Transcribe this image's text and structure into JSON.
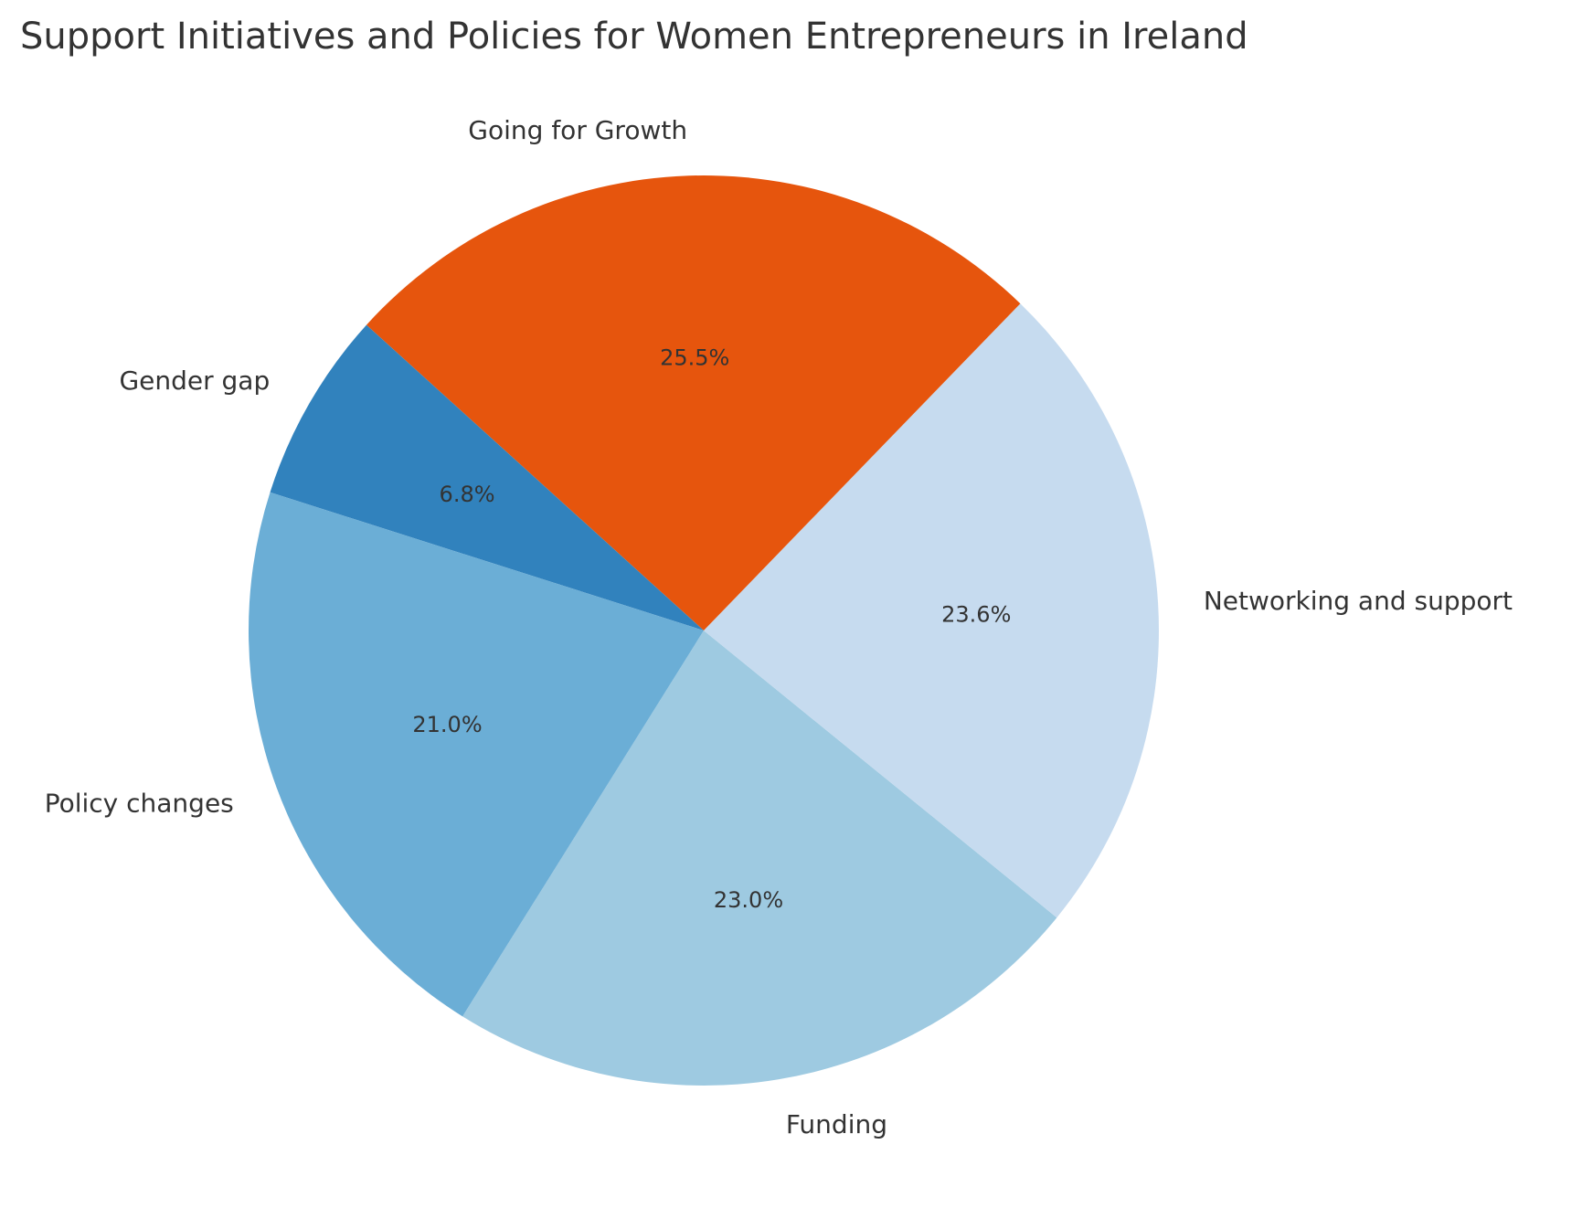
{
  "chart_data": {
    "type": "pie",
    "title": "Support Initiatives and Policies for Women Entrepreneurs in Ireland",
    "categories": [
      "Funding",
      "Networking and support",
      "Going for Growth",
      "Gender gap",
      "Policy changes"
    ],
    "values": [
      23.0,
      23.6,
      25.5,
      6.8,
      21.0
    ],
    "percent_labels": [
      "23.0%",
      "23.6%",
      "25.5%",
      "6.8%",
      "21.0%"
    ],
    "colors": [
      "#9ecae1",
      "#c6dbef",
      "#e6550d",
      "#3182bd",
      "#6baed6"
    ],
    "start_angle_deg": 238,
    "direction": "counterclockwise",
    "legend": "none"
  }
}
